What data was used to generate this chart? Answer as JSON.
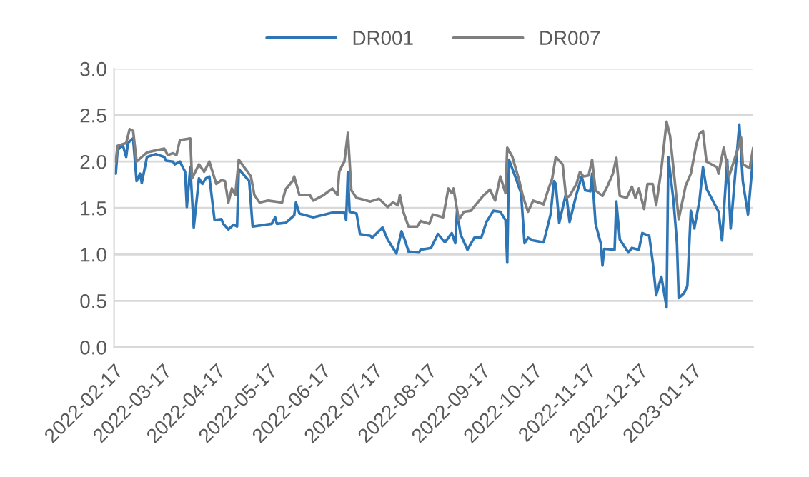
{
  "chart_data": {
    "type": "line",
    "legend": "top",
    "grid": "y",
    "marker": "none",
    "line_style": "solid",
    "ylim": [
      0,
      3
    ],
    "yticks": [
      {
        "value": 0,
        "label": "0.0"
      },
      {
        "value": 0.5,
        "label": "0.5"
      },
      {
        "value": 1,
        "label": "1.0"
      },
      {
        "value": 1.5,
        "label": "1.5"
      },
      {
        "value": 2,
        "label": "2.0"
      },
      {
        "value": 2.5,
        "label": "2.5"
      },
      {
        "value": 3,
        "label": "3.0"
      }
    ],
    "xlim": [
      "2022-02-17",
      "2023-02-21"
    ],
    "xticks": [
      "2022-02-17",
      "2022-03-17",
      "2022-04-17",
      "2022-05-17",
      "2022-06-17",
      "2022-07-17",
      "2022-08-17",
      "2022-09-17",
      "2022-10-17",
      "2022-11-17",
      "2022-12-17",
      "2023-01-17"
    ],
    "series": [
      {
        "name": "DR001",
        "color": "#2e75b6",
        "x": [
          "2022-02-18",
          "2022-02-19",
          "2022-02-22",
          "2022-02-24",
          "2022-02-25",
          "2022-02-28",
          "2022-03-02",
          "2022-03-04",
          "2022-03-05",
          "2022-03-08",
          "2022-03-13",
          "2022-03-18",
          "2022-03-19",
          "2022-03-23",
          "2022-03-24",
          "2022-03-27",
          "2022-03-30",
          "2022-03-31",
          "2022-04-02",
          "2022-04-04",
          "2022-04-07",
          "2022-04-09",
          "2022-04-11",
          "2022-04-13",
          "2022-04-16",
          "2022-04-20",
          "2022-04-21",
          "2022-04-24",
          "2022-04-27",
          "2022-04-29",
          "2022-04-30",
          "2022-05-06",
          "2022-05-08",
          "2022-05-19",
          "2022-05-21",
          "2022-05-22",
          "2022-05-27",
          "2022-06-01",
          "2022-06-02",
          "2022-06-04",
          "2022-06-12",
          "2022-06-23",
          "2022-06-30",
          "2022-07-01",
          "2022-07-02",
          "2022-07-03",
          "2022-07-07",
          "2022-07-09",
          "2022-07-15",
          "2022-07-16",
          "2022-07-22",
          "2022-07-25",
          "2022-07-30",
          "2022-08-02",
          "2022-08-04",
          "2022-08-06",
          "2022-08-12",
          "2022-08-13",
          "2022-08-19",
          "2022-08-23",
          "2022-08-27",
          "2022-08-31",
          "2022-09-02",
          "2022-09-03",
          "2022-09-05",
          "2022-09-09",
          "2022-09-13",
          "2022-09-17",
          "2022-09-20",
          "2022-09-24",
          "2022-09-28",
          "2022-10-01",
          "2022-10-02",
          "2022-10-03",
          "2022-10-07",
          "2022-10-10",
          "2022-10-12",
          "2022-10-14",
          "2022-10-17",
          "2022-10-23",
          "2022-10-27",
          "2022-10-29",
          "2022-10-30",
          "2022-11-01",
          "2022-11-05",
          "2022-11-07",
          "2022-11-11",
          "2022-11-14",
          "2022-11-16",
          "2022-11-19",
          "2022-11-20",
          "2022-11-22",
          "2022-11-25",
          "2022-11-26",
          "2022-11-27",
          "2022-12-03",
          "2022-12-04",
          "2022-12-06",
          "2022-12-11",
          "2022-12-13",
          "2022-12-17",
          "2022-12-19",
          "2022-12-23",
          "2022-12-25",
          "2022-12-27",
          "2022-12-30",
          "2023-01-02",
          "2023-01-03",
          "2023-01-06",
          "2023-01-08",
          "2023-01-09",
          "2023-01-12",
          "2023-01-14",
          "2023-01-16",
          "2023-01-18",
          "2023-01-21",
          "2023-01-23",
          "2023-01-25",
          "2023-02-01",
          "2023-02-03",
          "2023-02-06",
          "2023-02-08",
          "2023-02-13",
          "2023-02-15",
          "2023-02-18",
          "2023-02-21"
        ],
        "values": [
          1.87,
          2.12,
          2.18,
          2.05,
          2.2,
          2.25,
          1.79,
          1.87,
          1.77,
          2.05,
          2.08,
          2.05,
          2.01,
          2.0,
          1.97,
          2.0,
          1.89,
          1.51,
          1.94,
          1.29,
          1.82,
          1.76,
          1.82,
          1.84,
          1.37,
          1.38,
          1.33,
          1.27,
          1.32,
          1.3,
          1.92,
          1.79,
          1.3,
          1.33,
          1.4,
          1.33,
          1.34,
          1.42,
          1.56,
          1.44,
          1.4,
          1.45,
          1.45,
          1.37,
          1.89,
          1.46,
          1.44,
          1.22,
          1.2,
          1.18,
          1.29,
          1.16,
          1.01,
          1.25,
          1.15,
          1.03,
          1.02,
          1.05,
          1.07,
          1.22,
          1.13,
          1.23,
          1.12,
          1.47,
          1.22,
          1.05,
          1.18,
          1.18,
          1.35,
          1.47,
          1.46,
          1.37,
          0.91,
          2.02,
          1.82,
          1.66,
          1.12,
          1.18,
          1.15,
          1.13,
          1.43,
          1.79,
          1.76,
          1.34,
          1.66,
          1.35,
          1.65,
          1.84,
          1.69,
          1.68,
          1.87,
          1.33,
          1.12,
          0.88,
          1.06,
          1.05,
          1.57,
          1.16,
          1.02,
          1.07,
          1.05,
          1.23,
          1.2,
          0.92,
          0.56,
          0.76,
          0.43,
          2.05,
          1.58,
          1.12,
          0.53,
          0.58,
          0.66,
          1.47,
          1.28,
          1.58,
          1.94,
          1.71,
          1.46,
          1.15,
          2.02,
          1.28,
          2.4,
          1.79,
          1.43,
          2.06
        ]
      },
      {
        "name": "DR007",
        "color": "#7f7f7f",
        "x": [
          "2022-02-18",
          "2022-02-19",
          "2022-02-24",
          "2022-02-26",
          "2022-02-28",
          "2022-03-02",
          "2022-03-05",
          "2022-03-08",
          "2022-03-13",
          "2022-03-18",
          "2022-03-20",
          "2022-03-23",
          "2022-03-25",
          "2022-03-27",
          "2022-04-02",
          "2022-04-03",
          "2022-04-07",
          "2022-04-10",
          "2022-04-13",
          "2022-04-17",
          "2022-04-20",
          "2022-04-22",
          "2022-04-24",
          "2022-04-26",
          "2022-04-28",
          "2022-04-30",
          "2022-05-07",
          "2022-05-09",
          "2022-05-12",
          "2022-05-17",
          "2022-05-25",
          "2022-05-27",
          "2022-05-31",
          "2022-06-01",
          "2022-06-04",
          "2022-06-10",
          "2022-06-12",
          "2022-06-18",
          "2022-06-23",
          "2022-06-26",
          "2022-06-27",
          "2022-06-29",
          "2022-06-30",
          "2022-07-02",
          "2022-07-04",
          "2022-07-07",
          "2022-07-15",
          "2022-07-20",
          "2022-07-25",
          "2022-07-28",
          "2022-07-31",
          "2022-08-01",
          "2022-08-03",
          "2022-08-06",
          "2022-08-11",
          "2022-08-13",
          "2022-08-18",
          "2022-08-20",
          "2022-08-26",
          "2022-08-29",
          "2022-08-31",
          "2022-09-01",
          "2022-09-04",
          "2022-09-07",
          "2022-09-11",
          "2022-09-18",
          "2022-09-22",
          "2022-09-25",
          "2022-09-28",
          "2022-10-01",
          "2022-10-02",
          "2022-10-05",
          "2022-10-09",
          "2022-10-11",
          "2022-10-14",
          "2022-10-17",
          "2022-10-23",
          "2022-10-25",
          "2022-10-28",
          "2022-10-30",
          "2022-11-03",
          "2022-11-05",
          "2022-11-07",
          "2022-11-11",
          "2022-11-13",
          "2022-11-15",
          "2022-11-18",
          "2022-11-20",
          "2022-11-22",
          "2022-11-26",
          "2022-11-29",
          "2022-12-02",
          "2022-12-04",
          "2022-12-06",
          "2022-12-10",
          "2022-12-13",
          "2022-12-15",
          "2022-12-17",
          "2022-12-20",
          "2022-12-22",
          "2022-12-25",
          "2022-12-27",
          "2022-12-30",
          "2023-01-02",
          "2023-01-04",
          "2023-01-09",
          "2023-01-13",
          "2023-01-16",
          "2023-01-19",
          "2023-01-21",
          "2023-01-23",
          "2023-01-25",
          "2023-01-31",
          "2023-02-01",
          "2023-02-04",
          "2023-02-07",
          "2023-02-11",
          "2023-02-14",
          "2023-02-15",
          "2023-02-19",
          "2023-02-21"
        ],
        "values": [
          2.0,
          2.17,
          2.2,
          2.35,
          2.33,
          2.0,
          2.05,
          2.1,
          2.12,
          2.14,
          2.07,
          2.09,
          2.07,
          2.23,
          2.25,
          1.82,
          1.97,
          1.89,
          2.0,
          1.76,
          1.8,
          1.79,
          1.56,
          1.71,
          1.64,
          2.02,
          1.84,
          1.64,
          1.56,
          1.58,
          1.56,
          1.7,
          1.79,
          1.84,
          1.64,
          1.64,
          1.58,
          1.64,
          1.71,
          1.64,
          1.89,
          1.97,
          2.0,
          2.31,
          1.69,
          1.61,
          1.57,
          1.6,
          1.51,
          1.56,
          1.53,
          1.64,
          1.46,
          1.3,
          1.3,
          1.36,
          1.33,
          1.43,
          1.4,
          1.71,
          1.66,
          1.71,
          1.37,
          1.46,
          1.47,
          1.63,
          1.7,
          1.58,
          1.84,
          1.66,
          2.15,
          2.05,
          1.79,
          1.63,
          1.46,
          1.58,
          1.54,
          1.66,
          1.82,
          2.05,
          1.97,
          1.61,
          1.63,
          1.76,
          1.89,
          1.84,
          1.85,
          2.02,
          1.69,
          1.63,
          1.74,
          1.87,
          2.04,
          1.63,
          1.61,
          1.73,
          1.61,
          1.71,
          1.49,
          1.76,
          1.76,
          1.53,
          1.92,
          2.43,
          2.28,
          1.38,
          1.74,
          1.87,
          2.17,
          2.3,
          2.33,
          2.0,
          1.94,
          1.87,
          2.15,
          1.84,
          2.07,
          2.26,
          1.97,
          1.93,
          2.15
        ]
      }
    ]
  }
}
